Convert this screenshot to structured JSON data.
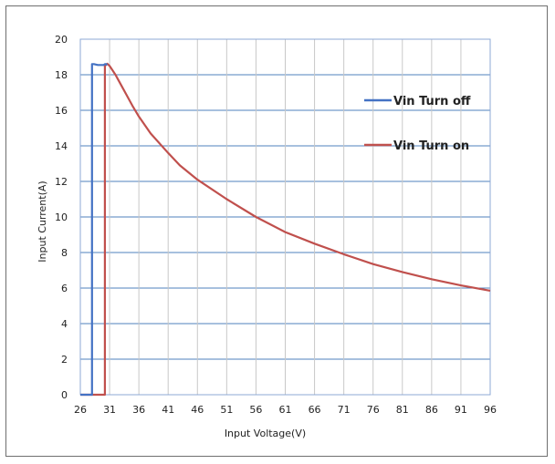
{
  "chart_data": {
    "type": "line",
    "title": "",
    "xlabel": "Input Voltage(V)",
    "ylabel": "Input Current(A)",
    "xlim": [
      26,
      96
    ],
    "ylim": [
      0,
      20
    ],
    "x_ticks": [
      26,
      31,
      36,
      41,
      46,
      51,
      56,
      61,
      66,
      71,
      76,
      81,
      86,
      91,
      96
    ],
    "x_tick_labels": [
      "26",
      "31",
      "36",
      "41",
      "46",
      "51",
      "56",
      "61",
      "66",
      "71",
      "76",
      "81",
      "86",
      "91",
      "96"
    ],
    "y_ticks": [
      0,
      2,
      4,
      6,
      8,
      10,
      12,
      14,
      16,
      18,
      20
    ],
    "y_tick_labels": [
      "0",
      "2",
      "4",
      "6",
      "8",
      "10",
      "12",
      "14",
      "16",
      "18",
      "20"
    ],
    "grid": true,
    "legend_position": "top-right",
    "series": [
      {
        "name": "Vin Turn off",
        "color": "#4472c4",
        "x": [
          26,
          28,
          28,
          28.3,
          29,
          29.6,
          30,
          30.2,
          30.4,
          30.6
        ],
        "y": [
          0,
          0,
          18.6,
          18.6,
          18.55,
          18.55,
          18.55,
          18.6,
          18.6,
          18.55
        ]
      },
      {
        "name": "Vin Turn on",
        "color": "#c0504d",
        "x": [
          26,
          30.2,
          30.2,
          30.6,
          31,
          32,
          33,
          34,
          35,
          36,
          38,
          41,
          43,
          46,
          51,
          56,
          61,
          66,
          71,
          76,
          81,
          86,
          91,
          96
        ],
        "y": [
          0,
          0,
          18.5,
          18.62,
          18.5,
          18.0,
          17.4,
          16.8,
          16.2,
          15.65,
          14.7,
          13.6,
          12.9,
          12.1,
          11.0,
          10.0,
          9.15,
          8.5,
          7.9,
          7.35,
          6.9,
          6.5,
          6.15,
          5.85
        ]
      }
    ]
  }
}
